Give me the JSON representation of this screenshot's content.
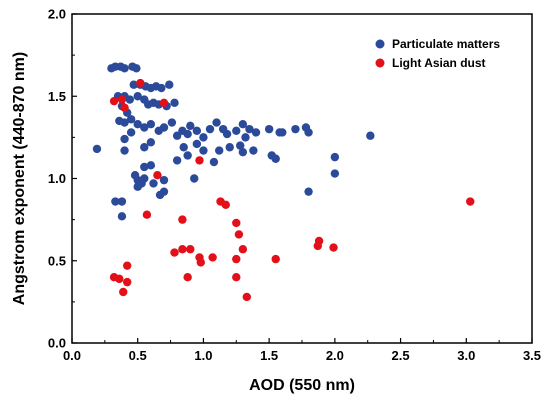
{
  "chart_data": {
    "type": "scatter",
    "xlabel": "AOD (550 nm)",
    "ylabel": "Angstrom exponent (440-870 nm)",
    "xlim": [
      0.0,
      3.5
    ],
    "ylim": [
      0.0,
      2.0
    ],
    "x_ticks": [
      "0.0",
      "0.5",
      "1.0",
      "1.5",
      "2.0",
      "2.5",
      "3.0",
      "3.5"
    ],
    "y_ticks": [
      "0.0",
      "0.5",
      "1.0",
      "1.5",
      "2.0"
    ],
    "grid": false,
    "legend_position": "top-right",
    "series": [
      {
        "name": "Particulate matters",
        "color": "#2c4a9a",
        "points": [
          [
            0.19,
            1.18
          ],
          [
            0.3,
            1.67
          ],
          [
            0.33,
            1.68
          ],
          [
            0.37,
            1.68
          ],
          [
            0.4,
            1.67
          ],
          [
            0.46,
            1.68
          ],
          [
            0.49,
            1.67
          ],
          [
            0.47,
            1.57
          ],
          [
            0.52,
            1.57
          ],
          [
            0.56,
            1.56
          ],
          [
            0.6,
            1.55
          ],
          [
            0.64,
            1.56
          ],
          [
            0.68,
            1.55
          ],
          [
            0.74,
            1.57
          ],
          [
            0.35,
            1.5
          ],
          [
            0.4,
            1.5
          ],
          [
            0.44,
            1.48
          ],
          [
            0.5,
            1.5
          ],
          [
            0.55,
            1.48
          ],
          [
            0.58,
            1.45
          ],
          [
            0.62,
            1.46
          ],
          [
            0.66,
            1.45
          ],
          [
            0.72,
            1.44
          ],
          [
            0.78,
            1.46
          ],
          [
            0.38,
            1.44
          ],
          [
            0.42,
            1.4
          ],
          [
            0.36,
            1.35
          ],
          [
            0.4,
            1.34
          ],
          [
            0.45,
            1.36
          ],
          [
            0.5,
            1.33
          ],
          [
            0.55,
            1.31
          ],
          [
            0.6,
            1.33
          ],
          [
            0.66,
            1.29
          ],
          [
            0.7,
            1.31
          ],
          [
            0.76,
            1.34
          ],
          [
            0.8,
            1.26
          ],
          [
            0.84,
            1.29
          ],
          [
            0.9,
            1.32
          ],
          [
            0.88,
            1.27
          ],
          [
            0.95,
            1.29
          ],
          [
            1.0,
            1.25
          ],
          [
            1.05,
            1.3
          ],
          [
            1.1,
            1.34
          ],
          [
            1.15,
            1.3
          ],
          [
            1.18,
            1.27
          ],
          [
            1.25,
            1.29
          ],
          [
            1.3,
            1.33
          ],
          [
            1.35,
            1.3
          ],
          [
            1.32,
            1.25
          ],
          [
            1.4,
            1.28
          ],
          [
            1.5,
            1.3
          ],
          [
            1.58,
            1.28
          ],
          [
            1.6,
            1.28
          ],
          [
            1.7,
            1.3
          ],
          [
            1.78,
            1.31
          ],
          [
            1.8,
            1.28
          ],
          [
            0.4,
            1.24
          ],
          [
            0.45,
            1.28
          ],
          [
            0.55,
            1.19
          ],
          [
            0.6,
            1.22
          ],
          [
            0.85,
            1.19
          ],
          [
            0.88,
            1.14
          ],
          [
            0.95,
            1.21
          ],
          [
            1.0,
            1.17
          ],
          [
            1.08,
            1.1
          ],
          [
            1.12,
            1.17
          ],
          [
            1.2,
            1.19
          ],
          [
            1.28,
            1.2
          ],
          [
            1.3,
            1.16
          ],
          [
            1.38,
            1.17
          ],
          [
            1.52,
            1.14
          ],
          [
            1.55,
            1.12
          ],
          [
            0.4,
            1.17
          ],
          [
            0.55,
            1.07
          ],
          [
            0.6,
            1.08
          ],
          [
            0.62,
            0.97
          ],
          [
            0.48,
            1.02
          ],
          [
            0.5,
            0.99
          ],
          [
            0.53,
            0.97
          ],
          [
            0.67,
            0.9
          ],
          [
            0.7,
            0.92
          ],
          [
            0.33,
            0.86
          ],
          [
            0.38,
            0.86
          ],
          [
            0.38,
            0.77
          ],
          [
            0.7,
            0.99
          ],
          [
            0.8,
            1.11
          ],
          [
            0.93,
            1.0
          ],
          [
            2.0,
            1.13
          ],
          [
            2.0,
            1.03
          ],
          [
            1.8,
            0.92
          ],
          [
            2.27,
            1.26
          ],
          [
            0.55,
            1.0
          ],
          [
            0.5,
            0.95
          ]
        ]
      },
      {
        "name": "Light Asian dust",
        "color": "#e3101a",
        "points": [
          [
            0.32,
            1.47
          ],
          [
            0.38,
            1.48
          ],
          [
            0.4,
            1.43
          ],
          [
            0.52,
            1.58
          ],
          [
            0.7,
            1.46
          ],
          [
            0.65,
            1.02
          ],
          [
            0.97,
            1.11
          ],
          [
            0.57,
            0.78
          ],
          [
            0.84,
            0.75
          ],
          [
            1.13,
            0.86
          ],
          [
            1.17,
            0.84
          ],
          [
            1.25,
            0.73
          ],
          [
            1.27,
            0.66
          ],
          [
            0.78,
            0.55
          ],
          [
            0.84,
            0.57
          ],
          [
            0.9,
            0.57
          ],
          [
            0.97,
            0.52
          ],
          [
            0.98,
            0.49
          ],
          [
            1.07,
            0.52
          ],
          [
            1.25,
            0.51
          ],
          [
            1.25,
            0.4
          ],
          [
            1.3,
            0.57
          ],
          [
            1.33,
            0.28
          ],
          [
            1.55,
            0.51
          ],
          [
            1.87,
            0.59
          ],
          [
            1.88,
            0.62
          ],
          [
            1.99,
            0.58
          ],
          [
            0.32,
            0.4
          ],
          [
            0.36,
            0.39
          ],
          [
            0.39,
            0.31
          ],
          [
            0.42,
            0.47
          ],
          [
            0.42,
            0.37
          ],
          [
            0.88,
            0.4
          ],
          [
            3.03,
            0.86
          ]
        ]
      }
    ]
  }
}
